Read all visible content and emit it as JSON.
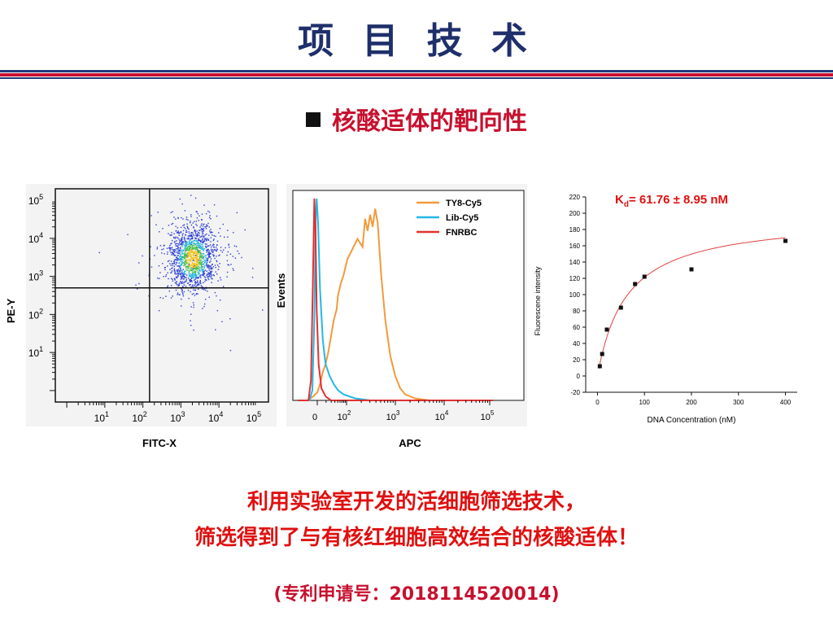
{
  "slide": {
    "title": "项 目 技 术",
    "section_heading": "核酸适体的靶向性",
    "caption_line1": "利用实验室开发的活细胞筛选技术，",
    "caption_line2": "筛选得到了与有核红细胞高效结合的核酸适体！",
    "patent": "(专利申请号：2018114520014)",
    "colors": {
      "title": "#1f2f6b",
      "accent_red": "#c8102e",
      "rule_blue": "#1f3a7a"
    }
  },
  "chart_data": [
    {
      "type": "scatter",
      "title": "",
      "xlabel": "FITC-X",
      "ylabel": "PE-Y",
      "x_scale": "log",
      "y_scale": "log",
      "xlim": [
        0.5,
        200000
      ],
      "ylim": [
        0.5,
        200000
      ],
      "x_tick_base": "10",
      "x_tick_exps": [
        "1",
        "2",
        "3",
        "4",
        "5"
      ],
      "y_tick_base": "10",
      "y_tick_exps": [
        "1",
        "2",
        "3",
        "4",
        "5"
      ],
      "quadrant_gate": {
        "x": 150,
        "y": 500
      },
      "population": {
        "center_x": 2000,
        "center_y": 3000,
        "spread_log_x": 0.32,
        "spread_log_y": 0.45,
        "events": 1400
      },
      "grid": false
    },
    {
      "type": "line",
      "title": "",
      "xlabel": "APC",
      "ylabel": "Events",
      "x_scale": "biexponential",
      "x_ticks": [
        "0",
        "10",
        "10",
        "10",
        "10"
      ],
      "x_tick_exps": [
        "",
        "2",
        "3",
        "4",
        "5"
      ],
      "legend_position": "top-right",
      "series": [
        {
          "name": "TY8-Cy5",
          "color": "#f39a3c",
          "points": [
            [
              -1.0,
              0
            ],
            [
              -0.5,
              0
            ],
            [
              -0.2,
              2
            ],
            [
              0,
              4
            ],
            [
              0.1,
              8
            ],
            [
              0.2,
              14
            ],
            [
              0.3,
              18
            ],
            [
              0.4,
              24
            ],
            [
              0.5,
              32
            ],
            [
              0.6,
              40
            ],
            [
              0.7,
              45
            ],
            [
              0.75,
              52
            ],
            [
              0.85,
              58
            ],
            [
              0.95,
              62
            ],
            [
              1.05,
              70
            ],
            [
              1.15,
              75
            ],
            [
              1.25,
              80
            ],
            [
              1.35,
              76
            ],
            [
              1.4,
              90
            ],
            [
              1.45,
              84
            ],
            [
              1.5,
              92
            ],
            [
              1.55,
              86
            ],
            [
              1.6,
              95
            ],
            [
              1.65,
              88
            ],
            [
              1.72,
              62
            ],
            [
              1.8,
              40
            ],
            [
              1.9,
              22
            ],
            [
              2.0,
              12
            ],
            [
              2.1,
              6
            ],
            [
              2.2,
              3
            ],
            [
              2.4,
              1
            ],
            [
              2.7,
              0
            ],
            [
              4.0,
              0
            ]
          ]
        },
        {
          "name": "Lib-Cy5",
          "color": "#22b8e6",
          "points": [
            [
              -1.0,
              0
            ],
            [
              -0.4,
              0
            ],
            [
              -0.25,
              5
            ],
            [
              -0.15,
              40
            ],
            [
              -0.08,
              90
            ],
            [
              -0.03,
              100
            ],
            [
              0.03,
              88
            ],
            [
              0.1,
              55
            ],
            [
              0.2,
              30
            ],
            [
              0.3,
              18
            ],
            [
              0.45,
              12
            ],
            [
              0.6,
              8
            ],
            [
              0.75,
              5
            ],
            [
              0.95,
              3
            ],
            [
              1.2,
              1
            ],
            [
              1.5,
              0
            ],
            [
              4.0,
              0
            ]
          ]
        },
        {
          "name": "FNRBC",
          "color": "#e23030",
          "points": [
            [
              -1.0,
              0
            ],
            [
              -0.45,
              0
            ],
            [
              -0.32,
              10
            ],
            [
              -0.22,
              60
            ],
            [
              -0.15,
              100
            ],
            [
              -0.09,
              85
            ],
            [
              -0.03,
              45
            ],
            [
              0.05,
              18
            ],
            [
              0.15,
              6
            ],
            [
              0.3,
              2
            ],
            [
              0.5,
              0
            ],
            [
              4.0,
              0
            ]
          ]
        }
      ]
    },
    {
      "type": "scatter",
      "title": "",
      "annotation_base": "K",
      "annotation_sub": "d",
      "annotation_rest": "= 61.76 ± 8.95 nM",
      "xlabel": "DNA Concentration (nM)",
      "ylabel": "Fluorescene intensity",
      "xlim": [
        -25,
        425
      ],
      "ylim": [
        -20,
        220
      ],
      "x_ticks": [
        0,
        100,
        200,
        300,
        400
      ],
      "y_ticks": [
        -20,
        0,
        20,
        40,
        60,
        80,
        100,
        120,
        140,
        160,
        180,
        200,
        220
      ],
      "points": [
        [
          5,
          12
        ],
        [
          10,
          27
        ],
        [
          20,
          57
        ],
        [
          50,
          84
        ],
        [
          80,
          113
        ],
        [
          100,
          122
        ],
        [
          200,
          131
        ],
        [
          400,
          166
        ]
      ],
      "fit": {
        "model": "one-site binding",
        "bmax": 196,
        "kd": 61.76,
        "color": "#e04040"
      },
      "grid": false
    }
  ]
}
